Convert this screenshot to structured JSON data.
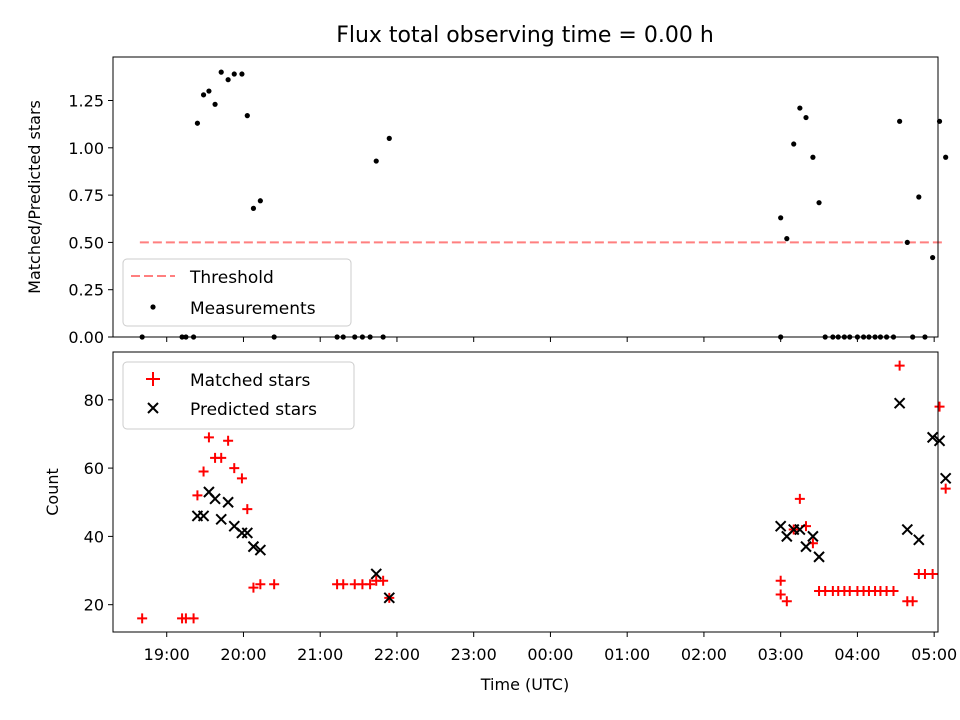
{
  "chart_data": [
    {
      "type": "scatter",
      "title": "Flux total observing time = 0.00 h",
      "xlabel": "",
      "ylabel": "Matched/Predicted stars",
      "xlim": [
        18.3,
        29.05
      ],
      "ylim": [
        0,
        1.48
      ],
      "yticks": [
        0.0,
        0.25,
        0.5,
        0.75,
        1.0,
        1.25
      ],
      "ytick_labels": [
        "0.00",
        "0.25",
        "0.50",
        "0.75",
        "1.00",
        "1.25"
      ],
      "legend": [
        "Threshold",
        "Measurements"
      ],
      "legend_loc": "lower-left",
      "threshold": {
        "name": "Threshold",
        "value": 0.5,
        "x_range": [
          18.65,
          29.15
        ],
        "color": "#ff7f7f"
      },
      "series": [
        {
          "name": "Measurements",
          "color": "#000000",
          "points": [
            [
              18.68,
              0.0
            ],
            [
              19.2,
              0.0
            ],
            [
              19.25,
              0.0
            ],
            [
              19.35,
              0.0
            ],
            [
              19.4,
              1.13
            ],
            [
              19.48,
              1.28
            ],
            [
              19.55,
              1.3
            ],
            [
              19.63,
              1.23
            ],
            [
              19.71,
              1.4
            ],
            [
              19.8,
              1.36
            ],
            [
              19.88,
              1.39
            ],
            [
              19.98,
              1.39
            ],
            [
              20.05,
              1.17
            ],
            [
              20.13,
              0.68
            ],
            [
              20.22,
              0.72
            ],
            [
              20.4,
              0.0
            ],
            [
              21.22,
              0.0
            ],
            [
              21.3,
              0.0
            ],
            [
              21.45,
              0.0
            ],
            [
              21.55,
              0.0
            ],
            [
              21.65,
              0.0
            ],
            [
              21.73,
              0.93
            ],
            [
              21.82,
              0.0
            ],
            [
              21.9,
              1.05
            ],
            [
              27.0,
              0.0
            ],
            [
              27.0,
              0.63
            ],
            [
              27.08,
              0.52
            ],
            [
              27.17,
              1.02
            ],
            [
              27.25,
              1.21
            ],
            [
              27.33,
              1.16
            ],
            [
              27.42,
              0.95
            ],
            [
              27.5,
              0.71
            ],
            [
              27.58,
              0.0
            ],
            [
              27.68,
              0.0
            ],
            [
              27.75,
              0.0
            ],
            [
              27.83,
              0.0
            ],
            [
              27.9,
              0.0
            ],
            [
              28.0,
              0.0
            ],
            [
              28.08,
              0.0
            ],
            [
              28.15,
              0.0
            ],
            [
              28.23,
              0.0
            ],
            [
              28.3,
              0.0
            ],
            [
              28.38,
              0.0
            ],
            [
              28.47,
              0.0
            ],
            [
              28.55,
              1.14
            ],
            [
              28.65,
              0.5
            ],
            [
              28.72,
              0.0
            ],
            [
              28.8,
              0.74
            ],
            [
              28.88,
              0.0
            ],
            [
              28.98,
              0.42
            ],
            [
              29.07,
              1.14
            ],
            [
              29.15,
              0.95
            ]
          ]
        }
      ]
    },
    {
      "type": "scatter",
      "title": "",
      "xlabel": "Time (UTC)",
      "ylabel": "Count",
      "xlim": [
        18.3,
        29.05
      ],
      "ylim": [
        12,
        94
      ],
      "yticks": [
        20,
        40,
        60,
        80
      ],
      "ytick_labels": [
        "20",
        "40",
        "60",
        "80"
      ],
      "xticks": [
        19,
        20,
        21,
        22,
        23,
        24,
        25,
        26,
        27,
        28,
        29
      ],
      "xtick_labels": [
        "19:00",
        "20:00",
        "21:00",
        "22:00",
        "23:00",
        "00:00",
        "01:00",
        "02:00",
        "03:00",
        "04:00",
        "05:00"
      ],
      "legend": [
        "Matched stars",
        "Predicted stars"
      ],
      "legend_loc": "upper-left",
      "series": [
        {
          "name": "Matched stars",
          "marker": "plus",
          "color": "#ff0000",
          "points": [
            [
              18.68,
              16
            ],
            [
              19.2,
              16
            ],
            [
              19.25,
              16
            ],
            [
              19.35,
              16
            ],
            [
              19.4,
              52
            ],
            [
              19.48,
              59
            ],
            [
              19.55,
              69
            ],
            [
              19.63,
              63
            ],
            [
              19.71,
              63
            ],
            [
              19.8,
              68
            ],
            [
              19.88,
              60
            ],
            [
              19.98,
              57
            ],
            [
              20.05,
              48
            ],
            [
              20.13,
              25
            ],
            [
              20.22,
              26
            ],
            [
              20.4,
              26
            ],
            [
              21.22,
              26
            ],
            [
              21.3,
              26
            ],
            [
              21.45,
              26
            ],
            [
              21.55,
              26
            ],
            [
              21.65,
              26
            ],
            [
              21.73,
              27
            ],
            [
              21.82,
              27
            ],
            [
              21.9,
              22
            ],
            [
              27.0,
              23
            ],
            [
              27.0,
              27
            ],
            [
              27.08,
              21
            ],
            [
              27.17,
              42
            ],
            [
              27.25,
              51
            ],
            [
              27.33,
              43
            ],
            [
              27.42,
              38
            ],
            [
              27.5,
              24
            ],
            [
              27.58,
              24
            ],
            [
              27.68,
              24
            ],
            [
              27.75,
              24
            ],
            [
              27.83,
              24
            ],
            [
              27.9,
              24
            ],
            [
              28.0,
              24
            ],
            [
              28.08,
              24
            ],
            [
              28.15,
              24
            ],
            [
              28.23,
              24
            ],
            [
              28.3,
              24
            ],
            [
              28.38,
              24
            ],
            [
              28.47,
              24
            ],
            [
              28.55,
              90
            ],
            [
              28.65,
              21
            ],
            [
              28.72,
              21
            ],
            [
              28.8,
              29
            ],
            [
              28.88,
              29
            ],
            [
              28.98,
              29
            ],
            [
              29.07,
              78
            ],
            [
              29.15,
              54
            ]
          ]
        },
        {
          "name": "Predicted stars",
          "marker": "x",
          "color": "#000000",
          "points": [
            [
              19.4,
              46
            ],
            [
              19.48,
              46
            ],
            [
              19.55,
              53
            ],
            [
              19.63,
              51
            ],
            [
              19.71,
              45
            ],
            [
              19.8,
              50
            ],
            [
              19.88,
              43
            ],
            [
              19.98,
              41
            ],
            [
              20.05,
              41
            ],
            [
              20.13,
              37
            ],
            [
              20.22,
              36
            ],
            [
              21.73,
              29
            ],
            [
              21.9,
              22
            ],
            [
              27.0,
              43
            ],
            [
              27.08,
              40
            ],
            [
              27.17,
              42
            ],
            [
              27.25,
              42
            ],
            [
              27.33,
              37
            ],
            [
              27.42,
              40
            ],
            [
              27.5,
              34
            ],
            [
              28.55,
              79
            ],
            [
              28.65,
              42
            ],
            [
              28.8,
              39
            ],
            [
              28.98,
              69
            ],
            [
              29.07,
              68
            ],
            [
              29.15,
              57
            ]
          ]
        }
      ]
    }
  ]
}
